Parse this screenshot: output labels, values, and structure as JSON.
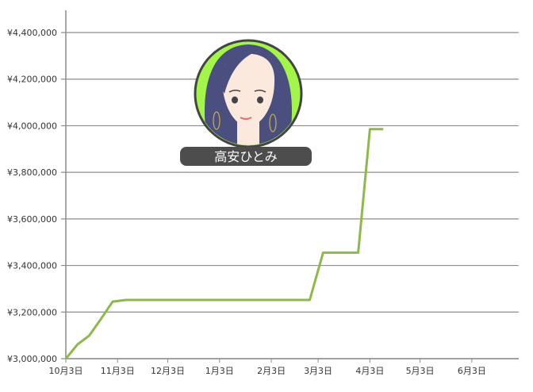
{
  "chart_data": {
    "type": "line",
    "title": "",
    "xlabel": "",
    "ylabel": "",
    "ylim": [
      3000000,
      4400000
    ],
    "yticks": [
      3000000,
      3200000,
      3400000,
      3600000,
      3800000,
      4000000,
      4200000,
      4400000
    ],
    "ytick_labels": [
      "¥3,000,000",
      "¥3,200,000",
      "¥3,400,000",
      "¥3,600,000",
      "¥3,800,000",
      "¥4,000,000",
      "¥4,200,000",
      "¥4,400,000"
    ],
    "xticks": [
      "10-03",
      "11-03",
      "12-03",
      "01-03",
      "02-03",
      "03-03",
      "04-03",
      "05-03",
      "06-03"
    ],
    "xtick_labels": [
      "10月3日",
      "11月3日",
      "12月3日",
      "1月3日",
      "2月3日",
      "3月3日",
      "4月3日",
      "5月3日",
      "6月3日"
    ],
    "xlim": [
      "10-03",
      "07-01"
    ],
    "grid": "horizontal",
    "line_color": "#8db84a",
    "series": [
      {
        "x": [
          "10-03",
          "10-10",
          "10-17",
          "10-24",
          "10-31",
          "11-08",
          "02-26",
          "03-06",
          "03-27",
          "04-03",
          "04-11"
        ],
        "values": [
          3000000,
          3061000,
          3099000,
          3170000,
          3245000,
          3252000,
          3252000,
          3455000,
          3455000,
          3985000,
          3985000
        ]
      }
    ]
  },
  "avatar": {
    "name": "高安ひとみ",
    "ring_color": "#a3f54a",
    "hair_color": "#4a4f80"
  }
}
